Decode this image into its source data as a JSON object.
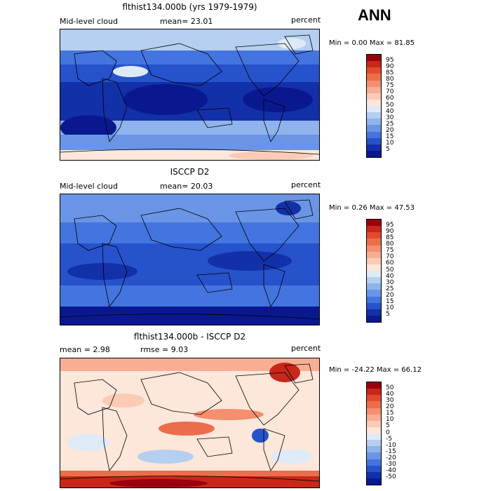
{
  "season": "ANN",
  "panels": [
    {
      "id": "model",
      "title": "flthist134.000b (yrs 1979-1979)",
      "left": "Mid-level cloud",
      "center": "mean=  23.01",
      "right": "percent",
      "minmax": "Min =   0.00 Max =  81.85",
      "levels": [
        "95",
        "90",
        "85",
        "80",
        "75",
        "70",
        "60",
        "50",
        "40",
        "30",
        "25",
        "20",
        "15",
        "10",
        "5"
      ],
      "colors": [
        "#99000d",
        "#c8271a",
        "#e04b2e",
        "#ec6d4b",
        "#f48f6f",
        "#f8ae94",
        "#fbcbb6",
        "#fde6da",
        "#deebf7",
        "#b5cff0",
        "#8fb3ec",
        "#6a95e6",
        "#4474df",
        "#2652cc",
        "#1230a8",
        "#0a1890"
      ]
    },
    {
      "id": "obs",
      "title": "ISCCP D2",
      "left": "Mid-level cloud",
      "center": "mean=  20.03",
      "right": "percent",
      "minmax": "Min =   0.26 Max =  47.53",
      "levels": [
        "95",
        "90",
        "85",
        "80",
        "75",
        "70",
        "60",
        "50",
        "40",
        "30",
        "25",
        "20",
        "15",
        "10",
        "5"
      ],
      "colors": [
        "#99000d",
        "#c8271a",
        "#e04b2e",
        "#ec6d4b",
        "#f48f6f",
        "#f8ae94",
        "#fbcbb6",
        "#fde6da",
        "#deebf7",
        "#b5cff0",
        "#8fb3ec",
        "#6a95e6",
        "#4474df",
        "#2652cc",
        "#1230a8",
        "#0a1890"
      ]
    },
    {
      "id": "diff",
      "title": "flthist134.000b - ISCCP D2",
      "left": "mean =   2.98",
      "center": "rmse =   9.03",
      "right": "percent",
      "minmax": "Min = -24.22 Max =  66.12",
      "levels": [
        "50",
        "40",
        "30",
        "20",
        "15",
        "10",
        "5",
        "0",
        "-5",
        "-10",
        "-15",
        "-20",
        "-30",
        "-40",
        "-50"
      ],
      "colors": [
        "#99000d",
        "#c8271a",
        "#e04b2e",
        "#ec6d4b",
        "#f48f6f",
        "#f8ae94",
        "#fbcbb6",
        "#fde6da",
        "#deebf7",
        "#b5cff0",
        "#8fb3ec",
        "#6a95e6",
        "#4474df",
        "#2652cc",
        "#1230a8",
        "#0a1890"
      ]
    }
  ]
}
